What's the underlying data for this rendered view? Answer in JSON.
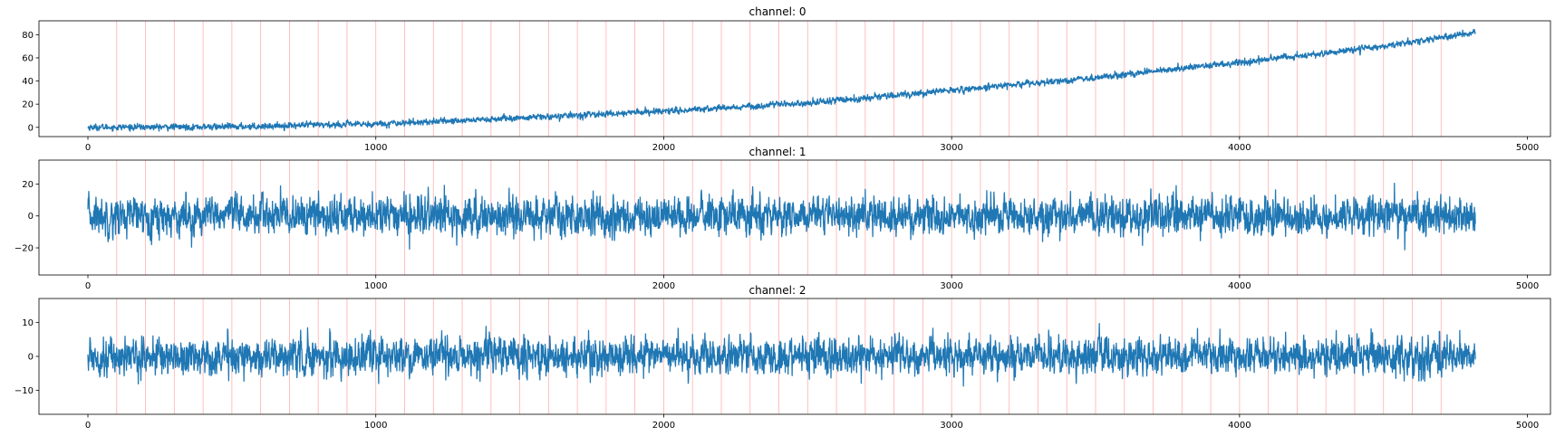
{
  "figure": {
    "background": "#ffffff",
    "line_color": "#1f77b4",
    "vline_color": "#ffb0b0"
  },
  "chart_data": [
    {
      "type": "line",
      "title": "channel: 0",
      "xlabel": "",
      "ylabel": "",
      "xlim": [
        -170,
        5080
      ],
      "ylim": [
        -8,
        92
      ],
      "xticks": [
        0,
        1000,
        2000,
        3000,
        4000,
        5000
      ],
      "xtick_labels": [
        "0",
        "1000",
        "2000",
        "3000",
        "4000",
        "5000"
      ],
      "yticks": [
        0,
        20,
        40,
        60,
        80
      ],
      "ytick_labels": [
        "0",
        "20",
        "40",
        "60",
        "80"
      ],
      "grid": false,
      "series": [
        {
          "x": [
            0,
            500,
            1000,
            1500,
            2000,
            2500,
            3000,
            3500,
            4000,
            4500,
            4820
          ],
          "values": [
            0,
            0.5,
            3,
            8,
            14,
            21,
            32,
            43,
            56,
            70,
            82
          ],
          "noise_amplitude": 2.5,
          "n_points": 4820
        }
      ],
      "vlines": [
        100,
        200,
        300,
        400,
        500,
        600,
        700,
        800,
        900,
        1000,
        1100,
        1200,
        1300,
        1400,
        1500,
        1600,
        1700,
        1800,
        1900,
        2000,
        2100,
        2200,
        2300,
        2400,
        2500,
        2600,
        2700,
        2800,
        2900,
        3000,
        3100,
        3200,
        3300,
        3400,
        3500,
        3600,
        3700,
        3800,
        3900,
        4000,
        4100,
        4200,
        4300,
        4400,
        4500,
        4600,
        4700
      ]
    },
    {
      "type": "line",
      "title": "channel: 1",
      "xlabel": "",
      "ylabel": "",
      "xlim": [
        -170,
        5080
      ],
      "ylim": [
        -37,
        35
      ],
      "xticks": [
        0,
        1000,
        2000,
        3000,
        4000,
        5000
      ],
      "xtick_labels": [
        "0",
        "1000",
        "2000",
        "3000",
        "4000",
        "5000"
      ],
      "yticks": [
        -20,
        0,
        20
      ],
      "ytick_labels": [
        "−20",
        "0",
        "20"
      ],
      "grid": false,
      "series": [
        {
          "x": [
            0,
            4820
          ],
          "values": [
            0,
            0
          ],
          "noise_amplitude": 11,
          "n_points": 4820
        }
      ],
      "vlines": [
        100,
        200,
        300,
        400,
        500,
        600,
        700,
        800,
        900,
        1000,
        1100,
        1200,
        1300,
        1400,
        1500,
        1600,
        1700,
        1800,
        1900,
        2000,
        2100,
        2200,
        2300,
        2400,
        2500,
        2600,
        2700,
        2800,
        2900,
        3000,
        3100,
        3200,
        3300,
        3400,
        3500,
        3600,
        3700,
        3800,
        3900,
        4000,
        4100,
        4200,
        4300,
        4400,
        4500,
        4600,
        4700
      ]
    },
    {
      "type": "line",
      "title": "channel: 2",
      "xlabel": "",
      "ylabel": "",
      "xlim": [
        -170,
        5080
      ],
      "ylim": [
        -17,
        17
      ],
      "xticks": [
        0,
        1000,
        2000,
        3000,
        4000,
        5000
      ],
      "xtick_labels": [
        "0",
        "1000",
        "2000",
        "3000",
        "4000",
        "5000"
      ],
      "yticks": [
        -10,
        0,
        10
      ],
      "ytick_labels": [
        "−10",
        "0",
        "10"
      ],
      "grid": false,
      "series": [
        {
          "x": [
            0,
            4820
          ],
          "values": [
            0,
            0
          ],
          "noise_amplitude": 5,
          "n_points": 4820
        }
      ],
      "vlines": [
        100,
        200,
        300,
        400,
        500,
        600,
        700,
        800,
        900,
        1000,
        1100,
        1200,
        1300,
        1400,
        1500,
        1600,
        1700,
        1800,
        1900,
        2000,
        2100,
        2200,
        2300,
        2400,
        2500,
        2600,
        2700,
        2800,
        2900,
        3000,
        3100,
        3200,
        3300,
        3400,
        3500,
        3600,
        3700,
        3800,
        3900,
        4000,
        4100,
        4200,
        4300,
        4400,
        4500,
        4600,
        4700
      ]
    }
  ]
}
